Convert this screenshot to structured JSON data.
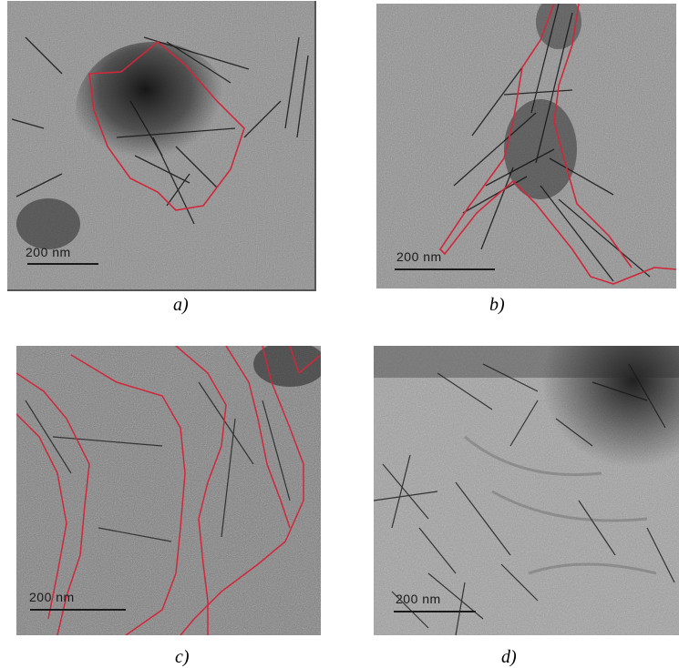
{
  "panels": [
    {
      "caption": "a)",
      "scale_label": "200  nm"
    },
    {
      "caption": "b)",
      "scale_label": "200  nm"
    },
    {
      "caption": "c)",
      "scale_label": "200  nm"
    },
    {
      "caption": "d)",
      "scale_label": "200  nm"
    }
  ],
  "colors": {
    "outline": "#d0283a",
    "fibers": "#141414"
  }
}
